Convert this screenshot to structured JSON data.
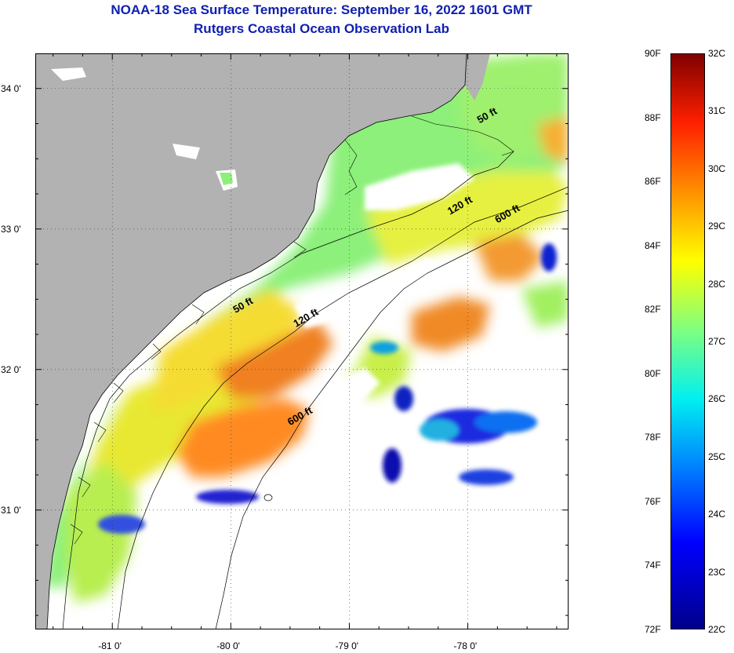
{
  "title": {
    "line1": "NOAA-18 Sea Surface Temperature:  September 16, 2022 1601 GMT",
    "line2": "Rutgers Coastal Ocean Observation Lab"
  },
  "colors": {
    "title": "#1020b0",
    "land": "#b2b2b2",
    "cloud": "#ffffff",
    "contour": "#000000"
  },
  "map": {
    "lon_range": [
      -81.65,
      -77.15
    ],
    "lat_range": [
      30.15,
      34.25
    ],
    "lon_ticks": [
      {
        "value": -81,
        "label": "-81 0'"
      },
      {
        "value": -80,
        "label": "-80 0'"
      },
      {
        "value": -79,
        "label": "-79 0'"
      },
      {
        "value": -78,
        "label": "-78 0'"
      }
    ],
    "lat_ticks": [
      {
        "value": 34,
        "label": "34 0'"
      },
      {
        "value": 33,
        "label": "33 0'"
      },
      {
        "value": 32,
        "label": "32 0'"
      },
      {
        "value": 31,
        "label": "31 0'"
      }
    ],
    "isobath_labels": [
      {
        "text": "50 ft",
        "lon": -77.9,
        "lat": 33.75
      },
      {
        "text": "120 ft",
        "lon": -78.15,
        "lat": 33.1
      },
      {
        "text": "600 ft",
        "lon": -77.75,
        "lat": 33.04
      },
      {
        "text": "50 ft",
        "lon": -79.96,
        "lat": 32.4
      },
      {
        "text": "120 ft",
        "lon": -79.45,
        "lat": 32.3
      },
      {
        "text": "600 ft",
        "lon": -79.5,
        "lat": 31.6
      }
    ]
  },
  "colorbar": {
    "fahrenheit": [
      "90F",
      "88F",
      "86F",
      "84F",
      "82F",
      "80F",
      "78F",
      "76F",
      "74F",
      "72F"
    ],
    "celsius": [
      "32C",
      "31C",
      "30C",
      "29C",
      "28C",
      "27C",
      "26C",
      "25C",
      "24C",
      "23C",
      "22C"
    ]
  }
}
